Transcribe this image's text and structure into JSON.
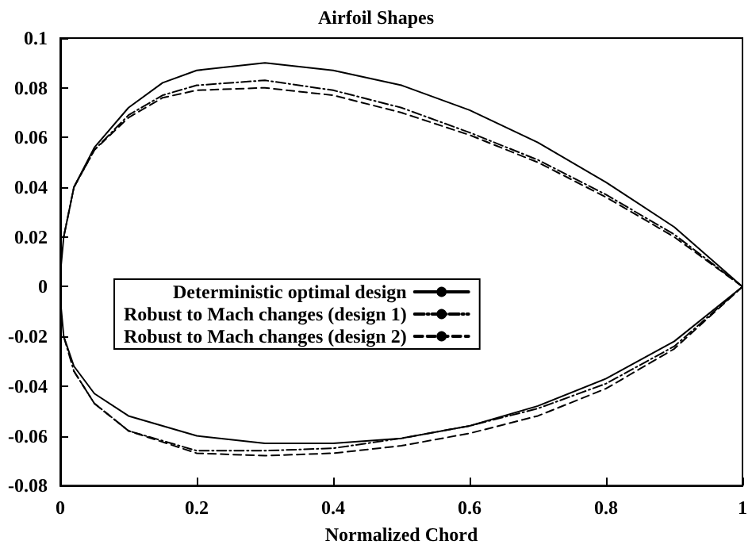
{
  "chart_data": {
    "type": "line",
    "title": "Airfoil Shapes",
    "xlabel": "Normalized Chord",
    "xlim": [
      0,
      1
    ],
    "xticks": [
      0,
      0.2,
      0.4,
      0.6,
      0.8,
      1
    ],
    "ylim": [
      -0.08,
      0.1
    ],
    "yticks": [
      -0.08,
      -0.06,
      -0.04,
      -0.02,
      0,
      0.02,
      0.04,
      0.06,
      0.08,
      0.1
    ],
    "grid": false,
    "legend": "left",
    "marker": "none",
    "series": [
      {
        "name": "Deterministic optimal design",
        "color": "#000000",
        "line_style": "solid",
        "x": [
          0,
          0.005,
          0.02,
          0.05,
          0.1,
          0.15,
          0.2,
          0.3,
          0.4,
          0.5,
          0.6,
          0.7,
          0.8,
          0.9,
          1
        ],
        "values": [
          0.005,
          0.02,
          0.04,
          0.056,
          0.072,
          0.082,
          0.087,
          0.09,
          0.087,
          0.081,
          0.071,
          0.058,
          0.042,
          0.024,
          0
        ]
      },
      {
        "name": "Robust to Mach changes (design 1)",
        "color": "#000000",
        "line_style": "dashdot",
        "x": [
          0.005,
          0.02,
          0.05,
          0.1,
          0.15,
          0.2,
          0.3,
          0.4,
          0.5,
          0.6,
          0.7,
          0.8,
          0.9,
          1
        ],
        "values": [
          0.02,
          0.04,
          0.055,
          0.069,
          0.077,
          0.081,
          0.083,
          0.079,
          0.072,
          0.062,
          0.051,
          0.037,
          0.021,
          0
        ]
      },
      {
        "name": "Robust to Mach changes (design 2)",
        "color": "#000000",
        "line_style": "dashed",
        "x": [
          0.02,
          0.05,
          0.1,
          0.15,
          0.2,
          0.3,
          0.4,
          0.5,
          0.6,
          0.7,
          0.8,
          0.9,
          1
        ],
        "values": [
          0.04,
          0.055,
          0.068,
          0.076,
          0.079,
          0.08,
          0.077,
          0.07,
          0.061,
          0.05,
          0.036,
          0.02,
          0
        ]
      },
      {
        "color": "#000000",
        "line_style": "solid",
        "x": [
          0,
          0.005,
          0.02,
          0.05,
          0.1,
          0.2,
          0.3,
          0.4,
          0.5,
          0.6,
          0.7,
          0.8,
          0.9,
          1
        ],
        "values": [
          -0.005,
          -0.02,
          -0.032,
          -0.043,
          -0.052,
          -0.06,
          -0.063,
          -0.063,
          -0.061,
          -0.056,
          -0.048,
          -0.037,
          -0.022,
          0
        ]
      },
      {
        "color": "#000000",
        "line_style": "dashdot",
        "x": [
          0.005,
          0.02,
          0.05,
          0.1,
          0.2,
          0.3,
          0.4,
          0.5,
          0.6,
          0.7,
          0.8,
          0.9,
          1
        ],
        "values": [
          -0.02,
          -0.034,
          -0.047,
          -0.058,
          -0.066,
          -0.066,
          -0.065,
          -0.061,
          -0.056,
          -0.049,
          -0.039,
          -0.024,
          0
        ]
      },
      {
        "color": "#000000",
        "line_style": "dashed",
        "x": [
          0.02,
          0.05,
          0.1,
          0.2,
          0.3,
          0.4,
          0.5,
          0.6,
          0.7,
          0.8,
          0.9,
          1
        ],
        "values": [
          -0.034,
          -0.047,
          -0.058,
          -0.067,
          -0.068,
          -0.067,
          -0.064,
          -0.059,
          -0.052,
          -0.041,
          -0.025,
          0
        ]
      }
    ]
  }
}
